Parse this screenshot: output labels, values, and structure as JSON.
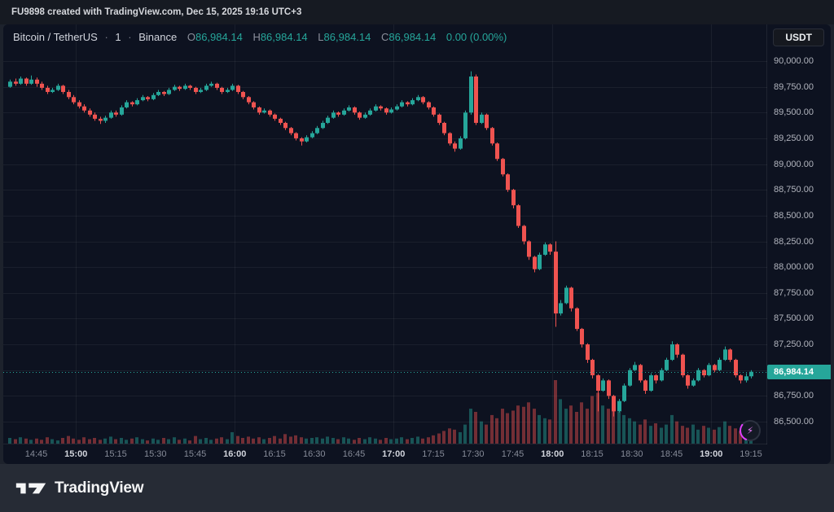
{
  "top_bar": {
    "text": "FU9898 created with TradingView.com, Dec 15, 2025 19:16 UTC+3"
  },
  "header": {
    "symbol": "Bitcoin / TetherUS",
    "sep": "·",
    "interval": "1",
    "exchange": "Binance",
    "ohlc": {
      "o": "86,984.14",
      "h": "86,984.14",
      "l": "86,984.14",
      "c": "86,984.14"
    },
    "change": "0.00 (0.00%)",
    "currency_button": "USDT"
  },
  "price_scale": {
    "grid_levels": [
      90000,
      89750,
      89500,
      89250,
      89000,
      88750,
      88500,
      88250,
      88000,
      87750,
      87500,
      87250,
      87000,
      86750,
      86500
    ],
    "ticks": [
      {
        "price": 90000,
        "label": "90,000.00"
      },
      {
        "price": 89750,
        "label": "89,750.00"
      },
      {
        "price": 89500,
        "label": "89,500.00"
      },
      {
        "price": 89250,
        "label": "89,250.00"
      },
      {
        "price": 89000,
        "label": "89,000.00"
      },
      {
        "price": 88750,
        "label": "88,750.00"
      },
      {
        "price": 88500,
        "label": "88,500.00"
      },
      {
        "price": 88250,
        "label": "88,250.00"
      },
      {
        "price": 88000,
        "label": "88,000.00"
      },
      {
        "price": 87750,
        "label": "87,750.00"
      },
      {
        "price": 87500,
        "label": "87,500.00"
      },
      {
        "price": 87250,
        "label": "87,250.00"
      },
      {
        "price": 86750,
        "label": "86,750.00"
      },
      {
        "price": 86500,
        "label": "86,500.00"
      }
    ],
    "price_label": {
      "price": 86984.14,
      "text": "86,984.14"
    }
  },
  "time_scale": {
    "ticks": [
      {
        "m": 10,
        "label": "14:45",
        "major": false
      },
      {
        "m": 25,
        "label": "15:00",
        "major": true
      },
      {
        "m": 40,
        "label": "15:15",
        "major": false
      },
      {
        "m": 55,
        "label": "15:30",
        "major": false
      },
      {
        "m": 70,
        "label": "15:45",
        "major": false
      },
      {
        "m": 85,
        "label": "16:00",
        "major": true
      },
      {
        "m": 100,
        "label": "16:15",
        "major": false
      },
      {
        "m": 115,
        "label": "16:30",
        "major": false
      },
      {
        "m": 130,
        "label": "16:45",
        "major": false
      },
      {
        "m": 145,
        "label": "17:00",
        "major": true
      },
      {
        "m": 160,
        "label": "17:15",
        "major": false
      },
      {
        "m": 175,
        "label": "17:30",
        "major": false
      },
      {
        "m": 190,
        "label": "17:45",
        "major": false
      },
      {
        "m": 205,
        "label": "18:00",
        "major": true
      },
      {
        "m": 220,
        "label": "18:15",
        "major": false
      },
      {
        "m": 235,
        "label": "18:30",
        "major": false
      },
      {
        "m": 250,
        "label": "18:45",
        "major": false
      },
      {
        "m": 265,
        "label": "19:00",
        "major": true
      },
      {
        "m": 280,
        "label": "19:15",
        "major": false
      }
    ]
  },
  "watermark": {
    "brand": "TradingView"
  },
  "boost": {
    "icon": "lightning",
    "glyph": "⚡"
  },
  "colors": {
    "up": "#26a69a",
    "down": "#ef5350",
    "up_vol": "rgba(38,166,154,0.45)",
    "down_vol": "rgba(239,83,80,0.45)",
    "bg": "#0d1220",
    "grid": "rgba(255,255,255,0.055)",
    "price_line": "#26a69a",
    "price_tag_bg": "#26a69a"
  },
  "chart_data": {
    "type": "candlestick",
    "title": "Bitcoin / TetherUS · 1 · Binance",
    "symbol": "BTCUSDT",
    "interval_label": "1",
    "last_price": 86984.14,
    "change": "0.00 (0.00%)",
    "y_axis_range": [
      86380,
      90100
    ],
    "x_axis_labels": [
      "14:45",
      "15:00",
      "15:15",
      "15:30",
      "15:45",
      "16:00",
      "16:15",
      "16:30",
      "16:45",
      "17:00",
      "17:15",
      "17:30",
      "17:45",
      "18:00",
      "18:15",
      "18:30",
      "18:45",
      "19:00",
      "19:15"
    ],
    "grid": true,
    "legend_position": "none",
    "candles": [
      [
        89750,
        89820,
        89740,
        89800
      ],
      [
        89800,
        89830,
        89760,
        89780
      ],
      [
        89780,
        89850,
        89770,
        89830
      ],
      [
        89830,
        89840,
        89760,
        89780
      ],
      [
        89780,
        89860,
        89770,
        89820
      ],
      [
        89820,
        89840,
        89750,
        89780
      ],
      [
        89780,
        89800,
        89720,
        89740
      ],
      [
        89740,
        89760,
        89680,
        89700
      ],
      [
        89700,
        89740,
        89690,
        89720
      ],
      [
        89720,
        89780,
        89710,
        89760
      ],
      [
        89760,
        89770,
        89680,
        89700
      ],
      [
        89700,
        89720,
        89630,
        89650
      ],
      [
        89650,
        89670,
        89580,
        89600
      ],
      [
        89600,
        89620,
        89540,
        89560
      ],
      [
        89560,
        89580,
        89500,
        89520
      ],
      [
        89520,
        89540,
        89460,
        89480
      ],
      [
        89480,
        89500,
        89420,
        89440
      ],
      [
        89440,
        89460,
        89390,
        89420
      ],
      [
        89420,
        89470,
        89400,
        89450
      ],
      [
        89450,
        89520,
        89440,
        89500
      ],
      [
        89500,
        89520,
        89460,
        89480
      ],
      [
        89480,
        89570,
        89470,
        89550
      ],
      [
        89550,
        89620,
        89540,
        89600
      ],
      [
        89600,
        89610,
        89560,
        89580
      ],
      [
        89580,
        89640,
        89570,
        89620
      ],
      [
        89620,
        89670,
        89610,
        89650
      ],
      [
        89650,
        89660,
        89610,
        89630
      ],
      [
        89630,
        89690,
        89620,
        89670
      ],
      [
        89670,
        89720,
        89660,
        89700
      ],
      [
        89700,
        89710,
        89660,
        89680
      ],
      [
        89680,
        89740,
        89670,
        89720
      ],
      [
        89720,
        89770,
        89710,
        89750
      ],
      [
        89750,
        89760,
        89710,
        89730
      ],
      [
        89730,
        89780,
        89720,
        89760
      ],
      [
        89760,
        89770,
        89720,
        89740
      ],
      [
        89740,
        89750,
        89680,
        89700
      ],
      [
        89700,
        89740,
        89690,
        89720
      ],
      [
        89720,
        89780,
        89710,
        89760
      ],
      [
        89760,
        89800,
        89750,
        89780
      ],
      [
        89780,
        89790,
        89720,
        89740
      ],
      [
        89740,
        89750,
        89680,
        89700
      ],
      [
        89700,
        89740,
        89690,
        89720
      ],
      [
        89720,
        89780,
        89710,
        89760
      ],
      [
        89760,
        89770,
        89680,
        89700
      ],
      [
        89700,
        89710,
        89630,
        89650
      ],
      [
        89650,
        89660,
        89580,
        89600
      ],
      [
        89600,
        89610,
        89530,
        89550
      ],
      [
        89550,
        89560,
        89480,
        89500
      ],
      [
        89500,
        89540,
        89490,
        89520
      ],
      [
        89520,
        89530,
        89460,
        89480
      ],
      [
        89480,
        89490,
        89420,
        89440
      ],
      [
        89440,
        89450,
        89380,
        89400
      ],
      [
        89400,
        89410,
        89330,
        89350
      ],
      [
        89350,
        89360,
        89280,
        89300
      ],
      [
        89300,
        89310,
        89230,
        89250
      ],
      [
        89250,
        89260,
        89180,
        89220
      ],
      [
        89220,
        89280,
        89210,
        89260
      ],
      [
        89260,
        89320,
        89250,
        89300
      ],
      [
        89300,
        89370,
        89290,
        89350
      ],
      [
        89350,
        89420,
        89340,
        89400
      ],
      [
        89400,
        89470,
        89390,
        89450
      ],
      [
        89450,
        89520,
        89440,
        89500
      ],
      [
        89500,
        89510,
        89460,
        89480
      ],
      [
        89480,
        89540,
        89470,
        89520
      ],
      [
        89520,
        89570,
        89510,
        89550
      ],
      [
        89550,
        89560,
        89480,
        89500
      ],
      [
        89500,
        89510,
        89430,
        89450
      ],
      [
        89450,
        89500,
        89440,
        89480
      ],
      [
        89480,
        89540,
        89470,
        89520
      ],
      [
        89520,
        89580,
        89510,
        89560
      ],
      [
        89560,
        89570,
        89520,
        89540
      ],
      [
        89540,
        89550,
        89480,
        89500
      ],
      [
        89500,
        89550,
        89490,
        89530
      ],
      [
        89530,
        89580,
        89520,
        89560
      ],
      [
        89560,
        89620,
        89550,
        89600
      ],
      [
        89600,
        89610,
        89560,
        89580
      ],
      [
        89580,
        89640,
        89570,
        89620
      ],
      [
        89620,
        89670,
        89610,
        89650
      ],
      [
        89650,
        89660,
        89580,
        89600
      ],
      [
        89600,
        89610,
        89530,
        89550
      ],
      [
        89550,
        89560,
        89460,
        89480
      ],
      [
        89480,
        89490,
        89380,
        89400
      ],
      [
        89400,
        89410,
        89280,
        89300
      ],
      [
        89300,
        89310,
        89180,
        89200
      ],
      [
        89200,
        89220,
        89120,
        89150
      ],
      [
        89150,
        89270,
        89140,
        89250
      ],
      [
        89250,
        89520,
        89240,
        89500
      ],
      [
        89500,
        89900,
        89480,
        89850
      ],
      [
        89850,
        89870,
        89380,
        89400
      ],
      [
        89400,
        89500,
        89390,
        89480
      ],
      [
        89480,
        89490,
        89330,
        89350
      ],
      [
        89350,
        89360,
        89180,
        89200
      ],
      [
        89200,
        89210,
        89030,
        89050
      ],
      [
        89050,
        89060,
        88880,
        88900
      ],
      [
        88900,
        88910,
        88730,
        88750
      ],
      [
        88750,
        88760,
        88570,
        88600
      ],
      [
        88600,
        88610,
        88380,
        88400
      ],
      [
        88400,
        88410,
        88220,
        88250
      ],
      [
        88250,
        88260,
        88070,
        88100
      ],
      [
        88100,
        88110,
        87950,
        87980
      ],
      [
        87980,
        88140,
        87970,
        88120
      ],
      [
        88120,
        88240,
        88110,
        88220
      ],
      [
        88220,
        88230,
        88120,
        88150
      ],
      [
        88150,
        88250,
        87420,
        87550
      ],
      [
        87550,
        87680,
        87530,
        87650
      ],
      [
        87650,
        87820,
        87640,
        87800
      ],
      [
        87800,
        87810,
        87570,
        87600
      ],
      [
        87600,
        87610,
        87380,
        87400
      ],
      [
        87400,
        87410,
        87220,
        87250
      ],
      [
        87250,
        87260,
        87070,
        87100
      ],
      [
        87100,
        87110,
        86920,
        86950
      ],
      [
        86950,
        86960,
        86600,
        86800
      ],
      [
        86800,
        86920,
        86790,
        86900
      ],
      [
        86900,
        86910,
        86720,
        86750
      ],
      [
        86750,
        86760,
        86550,
        86600
      ],
      [
        86600,
        86720,
        86590,
        86700
      ],
      [
        86700,
        86870,
        86690,
        86850
      ],
      [
        86850,
        87020,
        86840,
        87000
      ],
      [
        87000,
        87080,
        86990,
        87050
      ],
      [
        87050,
        87060,
        86880,
        86900
      ],
      [
        86900,
        86910,
        86770,
        86800
      ],
      [
        86800,
        86970,
        86790,
        86950
      ],
      [
        86950,
        86960,
        86870,
        86900
      ],
      [
        86900,
        87020,
        86890,
        87000
      ],
      [
        87000,
        87120,
        86990,
        87100
      ],
      [
        87100,
        87280,
        87090,
        87250
      ],
      [
        87250,
        87260,
        87120,
        87150
      ],
      [
        87150,
        87160,
        86930,
        86950
      ],
      [
        86950,
        86960,
        86820,
        86850
      ],
      [
        86850,
        86920,
        86840,
        86900
      ],
      [
        86900,
        87020,
        86890,
        87000
      ],
      [
        87000,
        87010,
        86930,
        86950
      ],
      [
        86950,
        87070,
        86940,
        87050
      ],
      [
        87050,
        87060,
        86980,
        87000
      ],
      [
        87000,
        87120,
        86990,
        87100
      ],
      [
        87100,
        87230,
        87090,
        87200
      ],
      [
        87200,
        87210,
        87080,
        87100
      ],
      [
        87100,
        87110,
        86930,
        86950
      ],
      [
        86950,
        86960,
        86870,
        86900
      ],
      [
        86900,
        86970,
        86880,
        86940
      ],
      [
        86940,
        87000,
        86920,
        86984.14
      ]
    ],
    "volumes": [
      0.09,
      0.07,
      0.1,
      0.08,
      0.06,
      0.08,
      0.06,
      0.1,
      0.07,
      0.05,
      0.09,
      0.12,
      0.08,
      0.06,
      0.1,
      0.07,
      0.09,
      0.06,
      0.08,
      0.11,
      0.07,
      0.09,
      0.06,
      0.08,
      0.1,
      0.07,
      0.05,
      0.08,
      0.06,
      0.09,
      0.07,
      0.1,
      0.06,
      0.08,
      0.05,
      0.12,
      0.07,
      0.09,
      0.06,
      0.08,
      0.1,
      0.07,
      0.18,
      0.12,
      0.09,
      0.11,
      0.08,
      0.1,
      0.07,
      0.09,
      0.12,
      0.08,
      0.15,
      0.11,
      0.13,
      0.1,
      0.08,
      0.09,
      0.1,
      0.08,
      0.11,
      0.09,
      0.07,
      0.1,
      0.08,
      0.06,
      0.09,
      0.07,
      0.1,
      0.08,
      0.06,
      0.09,
      0.07,
      0.08,
      0.1,
      0.07,
      0.09,
      0.11,
      0.08,
      0.1,
      0.13,
      0.16,
      0.2,
      0.24,
      0.22,
      0.18,
      0.3,
      0.55,
      0.5,
      0.35,
      0.3,
      0.45,
      0.4,
      0.55,
      0.48,
      0.52,
      0.6,
      0.58,
      0.65,
      0.55,
      0.45,
      0.4,
      0.38,
      1.0,
      0.7,
      0.55,
      0.6,
      0.5,
      0.65,
      0.55,
      0.75,
      0.8,
      0.6,
      0.55,
      0.7,
      0.5,
      0.45,
      0.4,
      0.35,
      0.3,
      0.38,
      0.28,
      0.32,
      0.25,
      0.3,
      0.45,
      0.35,
      0.28,
      0.25,
      0.3,
      0.22,
      0.28,
      0.25,
      0.22,
      0.26,
      0.35,
      0.28,
      0.24,
      0.2,
      0.26,
      0.22
    ]
  }
}
